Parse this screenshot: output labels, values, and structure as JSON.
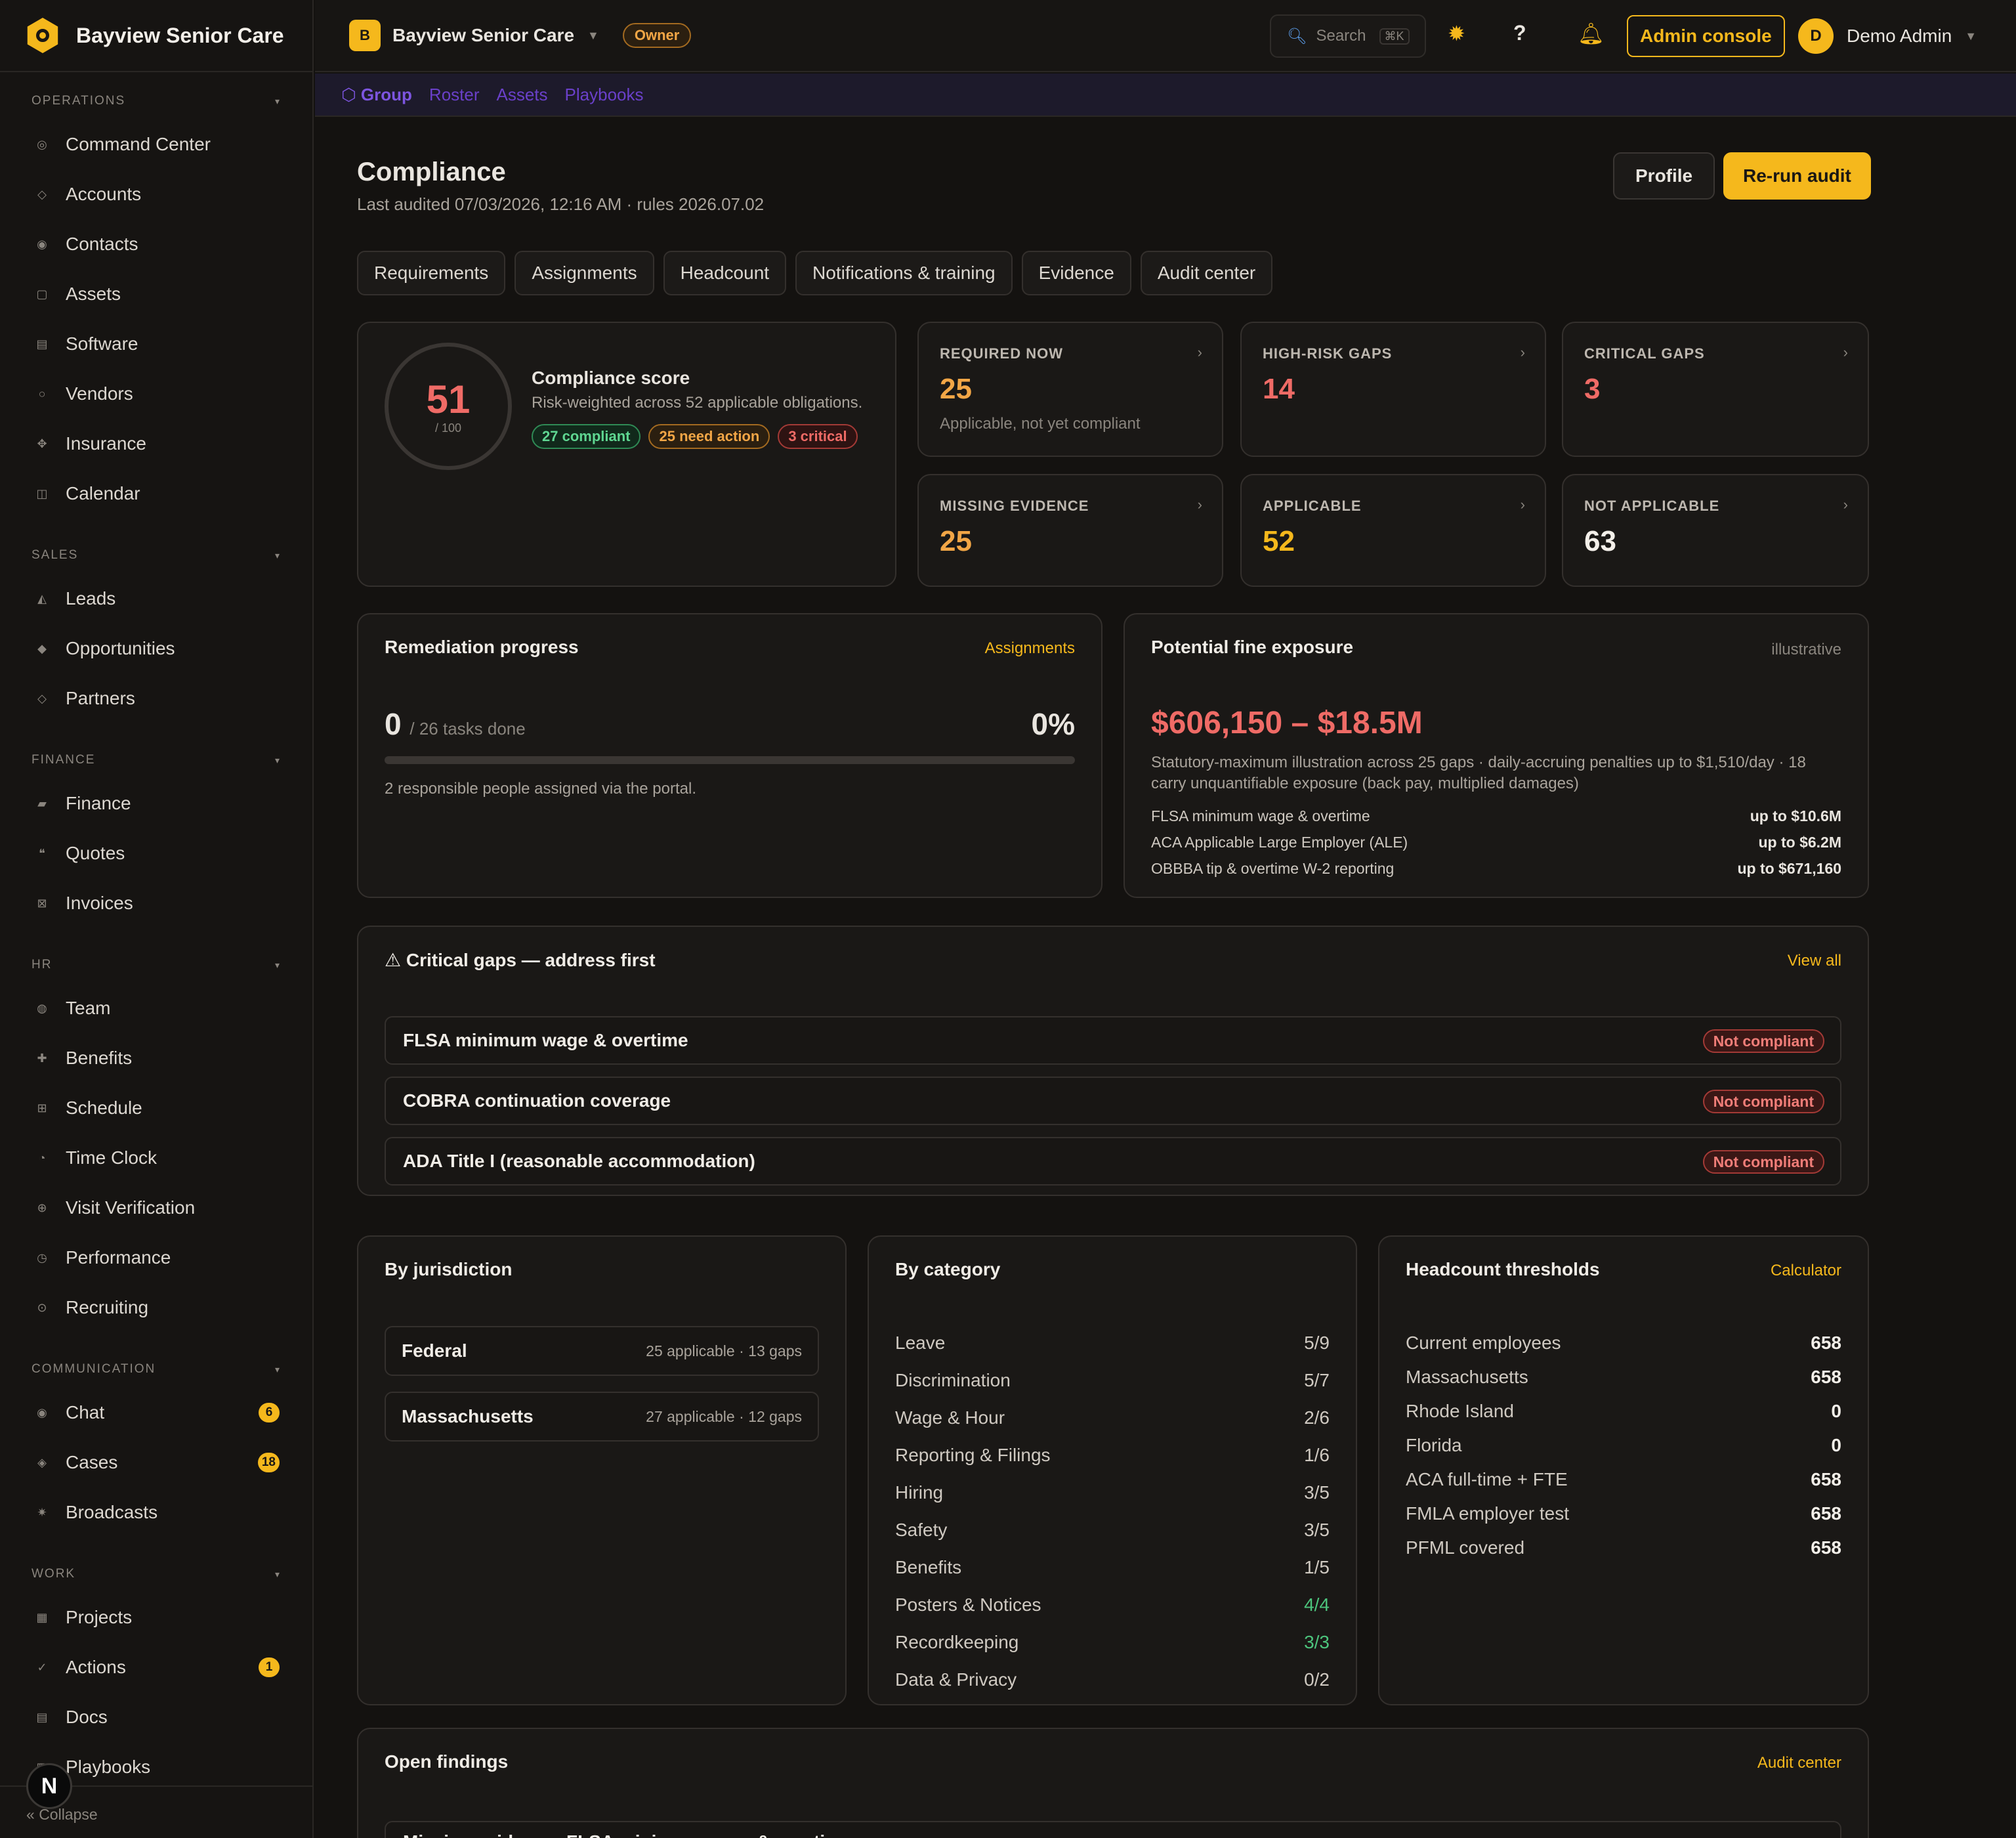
{
  "brand": {
    "name": "Bayview Senior Care"
  },
  "sidebar": {
    "sections": [
      {
        "title": "OPERATIONS",
        "items": [
          {
            "label": "Command Center",
            "icon": "◎"
          },
          {
            "label": "Accounts",
            "icon": "◇"
          },
          {
            "label": "Contacts",
            "icon": "◉"
          },
          {
            "label": "Assets",
            "icon": "▢"
          },
          {
            "label": "Software",
            "icon": "▤"
          },
          {
            "label": "Vendors",
            "icon": "○"
          },
          {
            "label": "Insurance",
            "icon": "✥"
          },
          {
            "label": "Calendar",
            "icon": "◫"
          }
        ]
      },
      {
        "title": "SALES",
        "items": [
          {
            "label": "Leads",
            "icon": "◭"
          },
          {
            "label": "Opportunities",
            "icon": "◆"
          },
          {
            "label": "Partners",
            "icon": "◇"
          }
        ]
      },
      {
        "title": "FINANCE",
        "items": [
          {
            "label": "Finance",
            "icon": "▰"
          },
          {
            "label": "Quotes",
            "icon": "❝"
          },
          {
            "label": "Invoices",
            "icon": "⊠"
          }
        ]
      },
      {
        "title": "HR",
        "items": [
          {
            "label": "Team",
            "icon": "◍"
          },
          {
            "label": "Benefits",
            "icon": "✚"
          },
          {
            "label": "Schedule",
            "icon": "⊞"
          },
          {
            "label": "Time Clock",
            "icon": "◔"
          },
          {
            "label": "Visit Verification",
            "icon": "⊕"
          },
          {
            "label": "Performance",
            "icon": "◷"
          },
          {
            "label": "Recruiting",
            "icon": "⊙"
          }
        ]
      },
      {
        "title": "COMMUNICATION",
        "items": [
          {
            "label": "Chat",
            "icon": "◉",
            "badge": "6"
          },
          {
            "label": "Cases",
            "icon": "◈",
            "badge": "18"
          },
          {
            "label": "Broadcasts",
            "icon": "✷"
          }
        ]
      },
      {
        "title": "WORK",
        "items": [
          {
            "label": "Projects",
            "icon": "▦"
          },
          {
            "label": "Actions",
            "icon": "✓",
            "badge": "1"
          },
          {
            "label": "Docs",
            "icon": "▤"
          },
          {
            "label": "Playbooks",
            "icon": "▥"
          }
        ]
      }
    ],
    "collapse_label": "Collapse",
    "collapse_icon": "«",
    "avatar_letter": "N"
  },
  "topbar": {
    "org_letter": "B",
    "org_name": "Bayview Senior Care",
    "org_caret": "▼",
    "role_badge": "Owner",
    "search_placeholder": "Search",
    "search_shortcut": "⌘K",
    "admin_button": "Admin console",
    "user_initial": "D",
    "user_name": "Demo Admin",
    "user_caret": "▼"
  },
  "subnav": {
    "items": [
      "⬡ Group",
      "Roster",
      "Assets",
      "Playbooks"
    ]
  },
  "page": {
    "title": "Compliance",
    "subtitle": "Last audited 07/03/2026, 12:16 AM · rules 2026.07.02",
    "profile_button": "Profile",
    "rerun_button": "Re-run audit",
    "tabs": [
      "Requirements",
      "Assignments",
      "Headcount",
      "Notifications & training",
      "Evidence",
      "Audit center"
    ]
  },
  "score": {
    "value": "51",
    "denominator": "/ 100",
    "title": "Compliance score",
    "description": "Risk-weighted across 52 applicable obligations.",
    "pills": {
      "compliant": "27 compliant",
      "need_action": "25 need action",
      "critical": "3 critical"
    }
  },
  "stats": [
    {
      "label": "REQUIRED NOW",
      "value": "25",
      "sub": "Applicable, not yet compliant",
      "color": "#f2a646"
    },
    {
      "label": "HIGH-RISK GAPS",
      "value": "14",
      "sub": "",
      "color": "#ef6b66"
    },
    {
      "label": "CRITICAL GAPS",
      "value": "3",
      "sub": "",
      "color": "#ef6b66"
    },
    {
      "label": "MISSING EVIDENCE",
      "value": "25",
      "sub": "",
      "color": "#f2a646"
    },
    {
      "label": "APPLICABLE",
      "value": "52",
      "sub": "",
      "color": "#f5b81c"
    },
    {
      "label": "NOT APPLICABLE",
      "value": "63",
      "sub": "",
      "color": "#f3efe9"
    }
  ],
  "remediation": {
    "title": "Remediation progress",
    "link": "Assignments",
    "done": "0",
    "total_text": "/ 26 tasks done",
    "percent_text": "0%",
    "progress_fraction": 0,
    "note": "2 responsible people assigned via the portal."
  },
  "fines": {
    "title": "Potential fine exposure",
    "tag": "illustrative",
    "range": "$606,150 – $18.5M",
    "description": "Statutory-maximum illustration across 25 gaps · daily-accruing penalties up to $1,510/day · 18 carry unquantifiable exposure (back pay, multiplied damages)",
    "rows": [
      {
        "label": "FLSA minimum wage & overtime",
        "value": "up to $10.6M"
      },
      {
        "label": "ACA Applicable Large Employer (ALE)",
        "value": "up to $6.2M"
      },
      {
        "label": "OBBBA tip & overtime W-2 reporting",
        "value": "up to $671,160"
      }
    ]
  },
  "critical_gaps": {
    "title": "⚠ Critical gaps — address first",
    "link": "View all",
    "items": [
      {
        "name": "FLSA minimum wage & overtime",
        "status": "Not compliant"
      },
      {
        "name": "COBRA continuation coverage",
        "status": "Not compliant"
      },
      {
        "name": "ADA Title I (reasonable accommodation)",
        "status": "Not compliant"
      }
    ]
  },
  "jurisdiction": {
    "title": "By jurisdiction",
    "items": [
      {
        "name": "Federal",
        "meta": "25 applicable · 13 gaps"
      },
      {
        "name": "Massachusetts",
        "meta": "27 applicable · 12 gaps"
      }
    ]
  },
  "category": {
    "title": "By category",
    "items": [
      {
        "name": "Leave",
        "value": "5/9"
      },
      {
        "name": "Discrimination",
        "value": "5/7"
      },
      {
        "name": "Wage & Hour",
        "value": "2/6"
      },
      {
        "name": "Reporting & Filings",
        "value": "1/6"
      },
      {
        "name": "Hiring",
        "value": "3/5"
      },
      {
        "name": "Safety",
        "value": "3/5"
      },
      {
        "name": "Benefits",
        "value": "1/5"
      },
      {
        "name": "Posters & Notices",
        "value": "4/4",
        "complete": true
      },
      {
        "name": "Recordkeeping",
        "value": "3/3",
        "complete": true
      },
      {
        "name": "Data & Privacy",
        "value": "0/2"
      }
    ]
  },
  "headcount": {
    "title": "Headcount thresholds",
    "link": "Calculator",
    "items": [
      {
        "name": "Current employees",
        "value": "658"
      },
      {
        "name": "Massachusetts",
        "value": "658"
      },
      {
        "name": "Rhode Island",
        "value": "0"
      },
      {
        "name": "Florida",
        "value": "0"
      },
      {
        "name": "ACA full-time + FTE",
        "value": "658"
      },
      {
        "name": "FMLA employer test",
        "value": "658"
      },
      {
        "name": "PFML covered",
        "value": "658"
      }
    ]
  },
  "findings": {
    "title": "Open findings",
    "link": "Audit center",
    "peek": "Missing evidence: FLSA minimum wage & overtime"
  },
  "colors": {
    "accent": "#f5b81c",
    "danger": "#ef6b66",
    "warning": "#f2a646",
    "success": "#4cc47c",
    "background": "#141210",
    "card": "#1a1816"
  }
}
